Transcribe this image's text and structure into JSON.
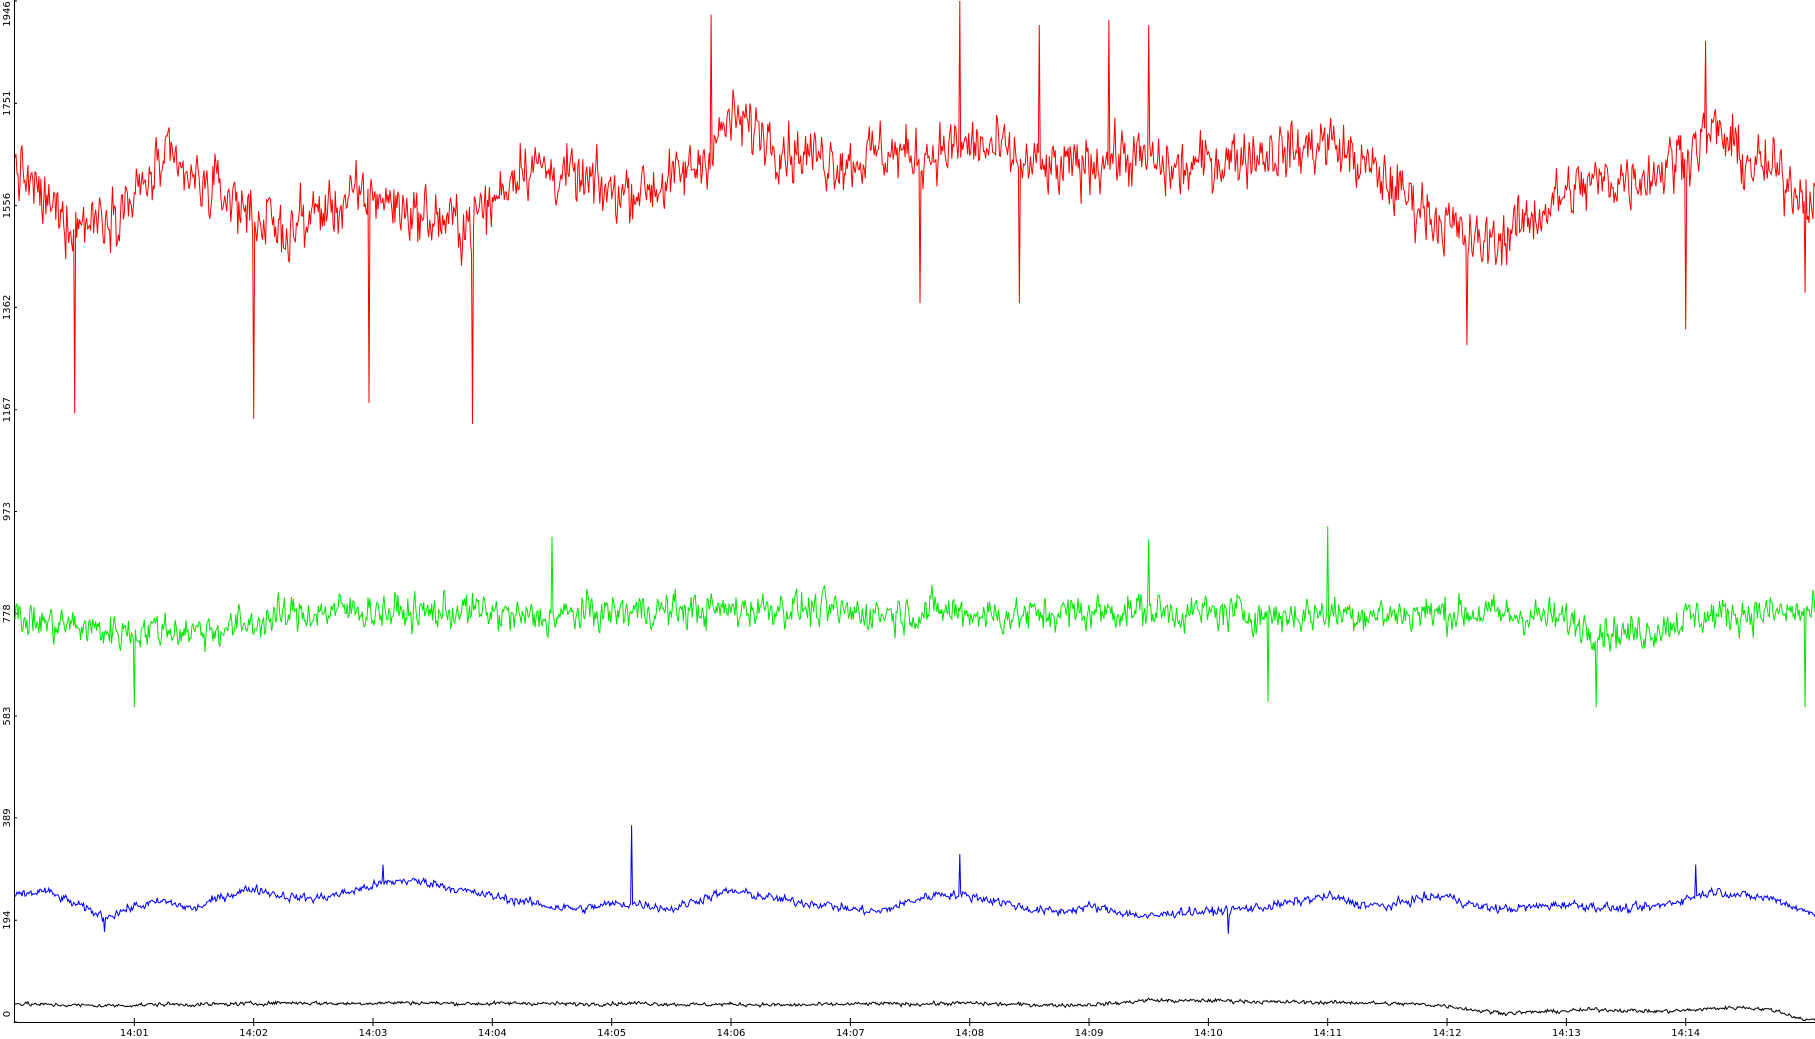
{
  "chart_data": {
    "type": "line",
    "title": "",
    "xlabel": "",
    "ylabel": "",
    "grid": false,
    "legend": "none",
    "ylim": [
      0,
      1946
    ],
    "xlim": [
      "14:00:00",
      "14:15:05"
    ],
    "y_ticks": [
      {
        "value": 0,
        "label": "0"
      },
      {
        "value": 194,
        "label": "194"
      },
      {
        "value": 389,
        "label": "389"
      },
      {
        "value": 583,
        "label": "583"
      },
      {
        "value": 778,
        "label": "778"
      },
      {
        "value": 973,
        "label": "973"
      },
      {
        "value": 1167,
        "label": "1167"
      },
      {
        "value": 1362,
        "label": "1362"
      },
      {
        "value": 1556,
        "label": "1556"
      },
      {
        "value": 1751,
        "label": "1751"
      },
      {
        "value": 1946,
        "label": "1946"
      }
    ],
    "x_ticks": [
      {
        "value": "14:01",
        "label": "14:01"
      },
      {
        "value": "14:02",
        "label": "14:02"
      },
      {
        "value": "14:03",
        "label": "14:03"
      },
      {
        "value": "14:04",
        "label": "14:04"
      },
      {
        "value": "14:05",
        "label": "14:05"
      },
      {
        "value": "14:06",
        "label": "14:06"
      },
      {
        "value": "14:07",
        "label": "14:07"
      },
      {
        "value": "14:08",
        "label": "14:08"
      },
      {
        "value": "14:09",
        "label": "14:09"
      },
      {
        "value": "14:10",
        "label": "14:10"
      },
      {
        "value": "14:11",
        "label": "14:11"
      },
      {
        "value": "14:12",
        "label": "14:12"
      },
      {
        "value": "14:13",
        "label": "14:13"
      },
      {
        "value": "14:14",
        "label": "14:14"
      }
    ],
    "series": [
      {
        "color": "#ff0000",
        "x": [
          "14:00",
          "14:00:15",
          "14:00:30",
          "14:00:45",
          "14:01",
          "14:01:15",
          "14:01:30",
          "14:01:45",
          "14:02",
          "14:02:15",
          "14:02:30",
          "14:02:45",
          "14:03",
          "14:03:15",
          "14:03:30",
          "14:03:45",
          "14:04",
          "14:04:15",
          "14:04:30",
          "14:04:45",
          "14:05",
          "14:05:15",
          "14:05:30",
          "14:05:45",
          "14:06",
          "14:06:15",
          "14:06:30",
          "14:06:45",
          "14:07",
          "14:07:15",
          "14:07:30",
          "14:07:45",
          "14:08",
          "14:08:15",
          "14:08:30",
          "14:08:45",
          "14:09",
          "14:09:15",
          "14:09:30",
          "14:09:45",
          "14:10",
          "14:10:15",
          "14:10:30",
          "14:10:45",
          "14:11",
          "14:11:15",
          "14:11:30",
          "14:11:45",
          "14:12",
          "14:12:15",
          "14:12:30",
          "14:12:45",
          "14:13",
          "14:13:15",
          "14:13:30",
          "14:13:45",
          "14:14",
          "14:14:15",
          "14:14:30",
          "14:14:45",
          "14:15"
        ],
        "y": [
          1630,
          1560,
          1520,
          1540,
          1570,
          1640,
          1600,
          1580,
          1540,
          1500,
          1540,
          1560,
          1580,
          1550,
          1530,
          1520,
          1560,
          1640,
          1620,
          1600,
          1580,
          1590,
          1600,
          1640,
          1720,
          1700,
          1660,
          1650,
          1640,
          1660,
          1650,
          1660,
          1670,
          1660,
          1630,
          1620,
          1640,
          1650,
          1640,
          1620,
          1640,
          1650,
          1660,
          1660,
          1680,
          1640,
          1600,
          1560,
          1520,
          1480,
          1500,
          1540,
          1580,
          1600,
          1610,
          1620,
          1660,
          1700,
          1640,
          1620,
          1580
        ],
        "noise": 90,
        "dips": [
          {
            "t": "14:00:30",
            "v": 1160
          },
          {
            "t": "14:02:00",
            "v": 1150
          },
          {
            "t": "14:02:58",
            "v": 1180
          },
          {
            "t": "14:03:50",
            "v": 1140
          },
          {
            "t": "14:07:35",
            "v": 1370
          },
          {
            "t": "14:08:25",
            "v": 1370
          },
          {
            "t": "14:12:10",
            "v": 1290
          },
          {
            "t": "14:14:00",
            "v": 1320
          },
          {
            "t": "14:15:00",
            "v": 1390
          }
        ],
        "peaks": [
          {
            "t": "14:05:50",
            "v": 1920
          },
          {
            "t": "14:07:55",
            "v": 1946
          },
          {
            "t": "14:08:35",
            "v": 1900
          },
          {
            "t": "14:09:10",
            "v": 1910
          },
          {
            "t": "14:09:30",
            "v": 1900
          },
          {
            "t": "14:14:10",
            "v": 1870
          }
        ]
      },
      {
        "color": "#00e600",
        "x": [
          "14:00",
          "14:00:15",
          "14:00:30",
          "14:00:45",
          "14:01",
          "14:01:15",
          "14:01:30",
          "14:01:45",
          "14:02",
          "14:02:15",
          "14:02:30",
          "14:02:45",
          "14:03",
          "14:03:15",
          "14:03:30",
          "14:03:45",
          "14:04",
          "14:04:15",
          "14:04:30",
          "14:04:45",
          "14:05",
          "14:05:15",
          "14:05:30",
          "14:05:45",
          "14:06",
          "14:06:15",
          "14:06:30",
          "14:06:45",
          "14:07",
          "14:07:15",
          "14:07:30",
          "14:07:45",
          "14:08",
          "14:08:15",
          "14:08:30",
          "14:08:45",
          "14:09",
          "14:09:15",
          "14:09:30",
          "14:09:45",
          "14:10",
          "14:10:15",
          "14:10:30",
          "14:10:45",
          "14:11",
          "14:11:15",
          "14:11:30",
          "14:11:45",
          "14:12",
          "14:12:15",
          "14:12:30",
          "14:12:45",
          "14:13",
          "14:13:15",
          "14:13:30",
          "14:13:45",
          "14:14",
          "14:14:15",
          "14:14:30",
          "14:14:45",
          "14:15"
        ],
        "y": [
          770,
          760,
          755,
          745,
          745,
          750,
          745,
          750,
          760,
          775,
          780,
          785,
          785,
          780,
          780,
          785,
          780,
          770,
          770,
          780,
          780,
          785,
          785,
          785,
          785,
          790,
          790,
          785,
          780,
          780,
          780,
          785,
          780,
          775,
          775,
          780,
          780,
          785,
          785,
          780,
          780,
          780,
          775,
          775,
          780,
          780,
          775,
          780,
          780,
          780,
          775,
          775,
          765,
          750,
          740,
          750,
          770,
          775,
          780,
          780,
          780
        ],
        "noise": 55,
        "dips": [
          {
            "t": "14:01:00",
            "v": 600
          },
          {
            "t": "14:10:30",
            "v": 610
          },
          {
            "t": "14:13:15",
            "v": 600
          },
          {
            "t": "14:15:00",
            "v": 600
          }
        ],
        "peaks": [
          {
            "t": "14:04:30",
            "v": 925
          },
          {
            "t": "14:09:30",
            "v": 920
          },
          {
            "t": "14:11:00",
            "v": 945
          }
        ]
      },
      {
        "color": "#0000ff",
        "x": [
          "14:00",
          "14:00:15",
          "14:00:30",
          "14:00:45",
          "14:01",
          "14:01:15",
          "14:01:30",
          "14:01:45",
          "14:02",
          "14:02:15",
          "14:02:30",
          "14:02:45",
          "14:03",
          "14:03:15",
          "14:03:30",
          "14:03:45",
          "14:04",
          "14:04:15",
          "14:04:30",
          "14:04:45",
          "14:05",
          "14:05:15",
          "14:05:30",
          "14:05:45",
          "14:06",
          "14:06:15",
          "14:06:30",
          "14:06:45",
          "14:07",
          "14:07:15",
          "14:07:30",
          "14:07:45",
          "14:08",
          "14:08:15",
          "14:08:30",
          "14:08:45",
          "14:09",
          "14:09:15",
          "14:09:30",
          "14:09:45",
          "14:10",
          "14:10:15",
          "14:10:30",
          "14:10:45",
          "14:11",
          "14:11:15",
          "14:11:30",
          "14:11:45",
          "14:12",
          "14:12:15",
          "14:12:30",
          "14:12:45",
          "14:13",
          "14:13:15",
          "14:13:30",
          "14:13:45",
          "14:14",
          "14:14:15",
          "14:14:30",
          "14:14:45",
          "14:15"
        ],
        "y": [
          240,
          250,
          225,
          200,
          220,
          230,
          215,
          240,
          255,
          240,
          235,
          245,
          260,
          270,
          265,
          250,
          240,
          230,
          220,
          215,
          225,
          225,
          215,
          235,
          250,
          240,
          230,
          225,
          215,
          210,
          230,
          245,
          240,
          230,
          215,
          210,
          220,
          210,
          200,
          210,
          210,
          215,
          220,
          230,
          240,
          225,
          220,
          235,
          240,
          220,
          215,
          220,
          225,
          220,
          215,
          220,
          235,
          250,
          240,
          235,
          210
        ],
        "noise": 14,
        "dips": [
          {
            "t": "14:00:45",
            "v": 172
          },
          {
            "t": "14:10:10",
            "v": 168
          }
        ],
        "peaks": [
          {
            "t": "14:05:10",
            "v": 375
          },
          {
            "t": "14:07:55",
            "v": 320
          },
          {
            "t": "14:03:05",
            "v": 300
          },
          {
            "t": "14:14:05",
            "v": 300
          }
        ]
      },
      {
        "color": "#000000",
        "x": [
          "14:00",
          "14:00:15",
          "14:00:30",
          "14:00:45",
          "14:01",
          "14:01:15",
          "14:01:30",
          "14:01:45",
          "14:02",
          "14:02:15",
          "14:02:30",
          "14:02:45",
          "14:03",
          "14:03:15",
          "14:03:30",
          "14:03:45",
          "14:04",
          "14:04:15",
          "14:04:30",
          "14:04:45",
          "14:05",
          "14:05:15",
          "14:05:30",
          "14:05:45",
          "14:06",
          "14:06:15",
          "14:06:30",
          "14:06:45",
          "14:07",
          "14:07:15",
          "14:07:30",
          "14:07:45",
          "14:08",
          "14:08:15",
          "14:08:30",
          "14:08:45",
          "14:09",
          "14:09:15",
          "14:09:30",
          "14:09:45",
          "14:10",
          "14:10:15",
          "14:10:30",
          "14:10:45",
          "14:11",
          "14:11:15",
          "14:11:30",
          "14:11:45",
          "14:12",
          "14:12:15",
          "14:12:30",
          "14:12:45",
          "14:13",
          "14:13:15",
          "14:13:30",
          "14:13:45",
          "14:14",
          "14:14:15",
          "14:14:30",
          "14:14:45",
          "14:15"
        ],
        "y": [
          35,
          33,
          32,
          31,
          32,
          34,
          33,
          34,
          35,
          37,
          36,
          35,
          36,
          37,
          36,
          35,
          35,
          36,
          35,
          34,
          35,
          36,
          34,
          33,
          34,
          33,
          32,
          33,
          34,
          35,
          34,
          35,
          36,
          34,
          33,
          32,
          33,
          36,
          42,
          40,
          41,
          40,
          38,
          38,
          37,
          37,
          35,
          34,
          31,
          22,
          17,
          19,
          21,
          24,
          22,
          20,
          22,
          26,
          28,
          22,
          4
        ],
        "noise": 6,
        "dips": [],
        "peaks": []
      }
    ]
  }
}
